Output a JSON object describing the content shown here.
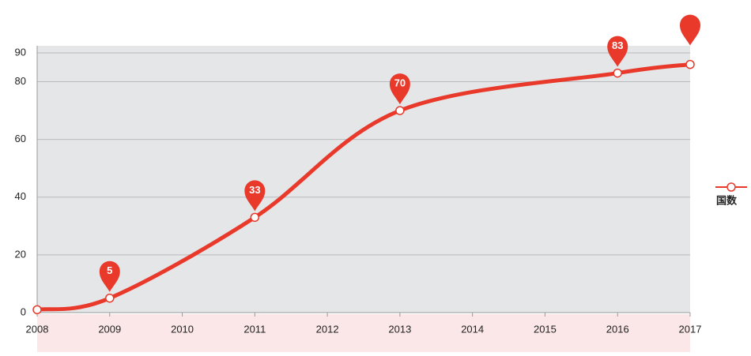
{
  "chart_data": {
    "type": "line",
    "x": [
      2008,
      2009,
      2011,
      2013,
      2016,
      2017
    ],
    "series": [
      {
        "name": "国数",
        "color": "#e8392b",
        "values": [
          1,
          5,
          33,
          70,
          83,
          86
        ],
        "value_labels": [
          null,
          "5",
          "33",
          "70",
          "83",
          null
        ]
      }
    ],
    "xlim": [
      2008,
      2017
    ],
    "xticks": [
      2008,
      2009,
      2010,
      2011,
      2012,
      2013,
      2014,
      2015,
      2016,
      2017
    ],
    "ylim": [
      0,
      90
    ],
    "yticks": [
      0,
      20,
      40,
      60,
      80,
      90
    ],
    "grid": true,
    "legend": "right"
  }
}
